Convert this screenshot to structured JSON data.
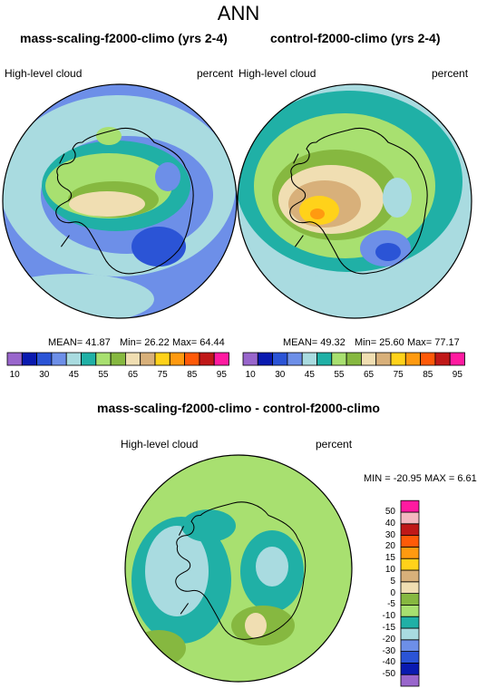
{
  "main_title": "ANN",
  "panels": [
    {
      "title": "mass-scaling-f2000-climo (yrs 2-4)",
      "left_label": "High-level cloud",
      "right_label": "percent",
      "stats": {
        "mean": "MEAN= 41.87",
        "min": "Min= 26.22",
        "max": "Max= 64.44"
      }
    },
    {
      "title": "control-f2000-climo (yrs 2-4)",
      "left_label": "High-level cloud",
      "right_label": "percent",
      "stats": {
        "mean": "MEAN= 49.32",
        "min": "Min= 25.60",
        "max": "Max= 77.17"
      }
    }
  ],
  "diff_panel": {
    "title": "mass-scaling-f2000-climo - control-f2000-climo",
    "left_label": "High-level cloud",
    "right_label": "percent",
    "minmax": "MIN = -20.95  MAX =   6.61"
  },
  "colorbar": {
    "colors": [
      "#9966cc",
      "#0a1ab0",
      "#2b54d6",
      "#6d8fe8",
      "#a9dbe0",
      "#20b0a6",
      "#a8e070",
      "#86b840",
      "#f0deb2",
      "#d8b07a",
      "#ffd21a",
      "#ff9a10",
      "#ff5a08",
      "#c01818",
      "#ff1aa0"
    ],
    "tick_labels": [
      "10",
      "30",
      "45",
      "55",
      "65",
      "75",
      "85",
      "95"
    ]
  },
  "diff_colorbar": {
    "colors": [
      "#9966cc",
      "#0a1ab0",
      "#2b54d6",
      "#6d8fe8",
      "#a9dbe0",
      "#20b0a6",
      "#a8e070",
      "#86b840",
      "#f0deb2",
      "#d8b07a",
      "#ffd21a",
      "#ff9a10",
      "#ff5a08",
      "#c01818",
      "#f4b8c0",
      "#ff1aa0"
    ],
    "tick_labels": [
      "50",
      "40",
      "30",
      "20",
      "15",
      "10",
      "5",
      "0",
      "-5",
      "-10",
      "-15",
      "-20",
      "-30",
      "-40",
      "-50"
    ]
  }
}
